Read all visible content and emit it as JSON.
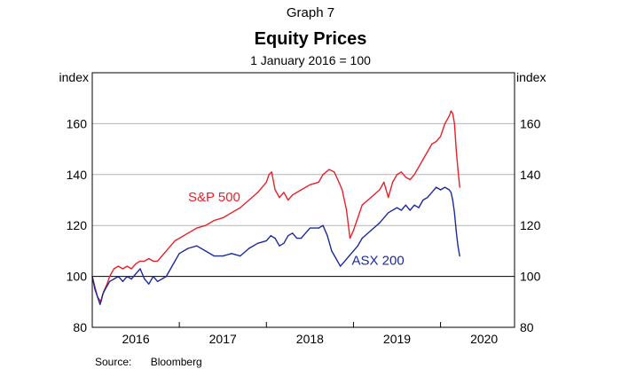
{
  "header": {
    "graph_label": "Graph 7",
    "title": "Equity Prices",
    "subtitle": "1 January 2016 = 100"
  },
  "footer": {
    "source_label": "Source:",
    "source_value": "Bloomberg"
  },
  "colors": {
    "sp500": "#e8202a",
    "asx200": "#1b2a9c",
    "grid": "#b5b5b5",
    "frame": "#000000"
  },
  "chart_data": {
    "type": "line",
    "title": "Equity Prices",
    "subtitle": "1 January 2016 = 100",
    "ylabel_left": "index",
    "ylabel_right": "index",
    "ylim": [
      80,
      180
    ],
    "yticks": [
      80,
      100,
      120,
      140,
      160
    ],
    "xlim": [
      2016.0,
      2020.85
    ],
    "xtick_labels": [
      "2016",
      "2017",
      "2018",
      "2019",
      "2020"
    ],
    "reference_line": 100,
    "grid": true,
    "series": [
      {
        "name": "S&P 500",
        "color": "#e8202a",
        "x": [
          2016.0,
          2016.03,
          2016.06,
          2016.1,
          2016.13,
          2016.17,
          2016.2,
          2016.25,
          2016.3,
          2016.35,
          2016.4,
          2016.45,
          2016.5,
          2016.55,
          2016.6,
          2016.65,
          2016.7,
          2016.75,
          2016.8,
          2016.85,
          2016.9,
          2016.95,
          2017.0,
          2017.1,
          2017.2,
          2017.3,
          2017.4,
          2017.5,
          2017.6,
          2017.7,
          2017.8,
          2017.9,
          2018.0,
          2018.03,
          2018.06,
          2018.1,
          2018.15,
          2018.2,
          2018.25,
          2018.3,
          2018.4,
          2018.5,
          2018.6,
          2018.65,
          2018.72,
          2018.78,
          2018.82,
          2018.87,
          2018.92,
          2018.96,
          2019.0,
          2019.05,
          2019.1,
          2019.2,
          2019.3,
          2019.35,
          2019.4,
          2019.45,
          2019.5,
          2019.55,
          2019.6,
          2019.65,
          2019.7,
          2019.75,
          2019.8,
          2019.85,
          2019.9,
          2019.95,
          2020.0,
          2020.05,
          2020.1,
          2020.12,
          2020.14,
          2020.16,
          2020.18,
          2020.2,
          2020.22
        ],
        "values": [
          100,
          96,
          92,
          90,
          94,
          97,
          100,
          103,
          104,
          103,
          104,
          103,
          105,
          106,
          106,
          107,
          106,
          106,
          108,
          110,
          112,
          114,
          115,
          117,
          119,
          120,
          122,
          123,
          125,
          127,
          130,
          133,
          137,
          140,
          141,
          134,
          131,
          133,
          130,
          132,
          134,
          136,
          137,
          140,
          142,
          141,
          138,
          134,
          126,
          115,
          118,
          123,
          128,
          131,
          134,
          137,
          131,
          137,
          140,
          141,
          139,
          138,
          140,
          143,
          146,
          149,
          152,
          153,
          155,
          160,
          163,
          165,
          164,
          160,
          150,
          142,
          135
        ]
      },
      {
        "name": "ASX 200",
        "color": "#1b2a9c",
        "x": [
          2016.0,
          2016.03,
          2016.06,
          2016.09,
          2016.12,
          2016.15,
          2016.2,
          2016.25,
          2016.3,
          2016.35,
          2016.4,
          2016.45,
          2016.5,
          2016.55,
          2016.6,
          2016.65,
          2016.7,
          2016.75,
          2016.8,
          2016.85,
          2016.9,
          2016.95,
          2017.0,
          2017.1,
          2017.2,
          2017.3,
          2017.4,
          2017.5,
          2017.6,
          2017.7,
          2017.8,
          2017.9,
          2018.0,
          2018.05,
          2018.1,
          2018.15,
          2018.2,
          2018.25,
          2018.3,
          2018.35,
          2018.4,
          2018.5,
          2018.6,
          2018.65,
          2018.7,
          2018.75,
          2018.8,
          2018.85,
          2018.9,
          2018.95,
          2019.0,
          2019.05,
          2019.1,
          2019.2,
          2019.3,
          2019.4,
          2019.5,
          2019.55,
          2019.6,
          2019.65,
          2019.7,
          2019.75,
          2019.8,
          2019.85,
          2019.9,
          2019.95,
          2020.0,
          2020.05,
          2020.1,
          2020.12,
          2020.14,
          2020.16,
          2020.18,
          2020.2,
          2020.22
        ],
        "values": [
          100,
          95,
          92,
          89,
          93,
          95,
          98,
          99,
          100,
          98,
          100,
          99,
          101,
          103,
          99,
          97,
          100,
          98,
          99,
          100,
          103,
          106,
          109,
          111,
          112,
          110,
          108,
          108,
          109,
          108,
          111,
          113,
          114,
          116,
          115,
          112,
          113,
          116,
          117,
          115,
          115,
          119,
          119,
          120,
          116,
          110,
          107,
          104,
          106,
          108,
          110,
          112,
          115,
          118,
          121,
          125,
          127,
          126,
          128,
          126,
          128,
          127,
          130,
          131,
          133,
          135,
          134,
          135,
          134,
          133,
          130,
          125,
          118,
          112,
          108
        ]
      }
    ],
    "annotations": [
      {
        "text": "S&P 500",
        "series": "S&P 500"
      },
      {
        "text": "ASX 200",
        "series": "ASX 200"
      }
    ]
  }
}
